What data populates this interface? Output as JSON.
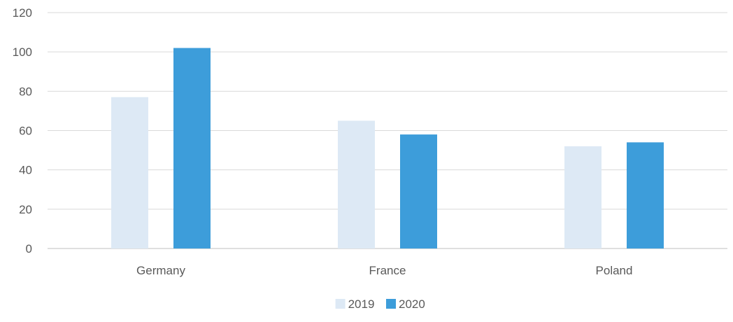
{
  "chart_data": {
    "type": "bar",
    "title": "",
    "xlabel": "",
    "ylabel": "",
    "categories": [
      "Germany",
      "France",
      "Poland"
    ],
    "series": [
      {
        "name": "2019",
        "values": [
          77,
          65,
          52
        ],
        "color": "#dde9f5"
      },
      {
        "name": "2020",
        "values": [
          102,
          58,
          54
        ],
        "color": "#3d9dda"
      }
    ],
    "ylim": [
      0,
      120
    ],
    "yticks": [
      0,
      20,
      40,
      60,
      80,
      100,
      120
    ],
    "grid": true,
    "legend_position": "bottom-center",
    "colors": {
      "gridline": "#d9d9d9",
      "axis": "#bfbfbf",
      "tick_text": "#595959"
    }
  }
}
